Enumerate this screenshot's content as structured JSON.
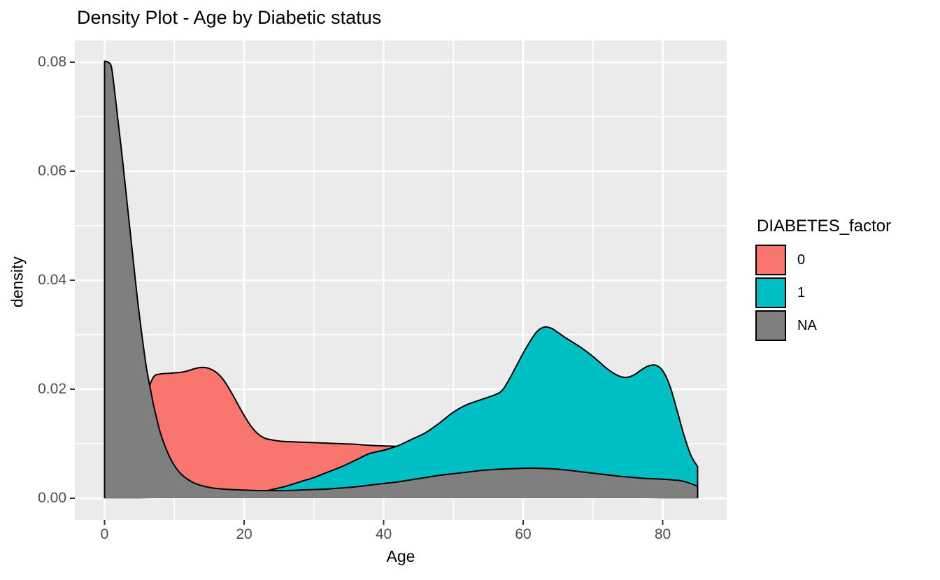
{
  "title": "Density Plot - Age by Diabetic status",
  "axes": {
    "x": {
      "label": "Age",
      "tick_values": [
        0,
        20,
        40,
        60,
        80
      ],
      "tick_labels": [
        "0",
        "20",
        "40",
        "60",
        "80"
      ],
      "minor_tick_values": [
        10,
        30,
        50,
        70
      ]
    },
    "y": {
      "label": "density",
      "tick_values": [
        0,
        0.02,
        0.04,
        0.06,
        0.08
      ],
      "tick_labels": [
        "0.00",
        "0.02",
        "0.04",
        "0.06",
        "0.08"
      ],
      "minor_tick_values": [
        0.01,
        0.03,
        0.05,
        0.07
      ]
    }
  },
  "legend": {
    "title": "DIABETES_factor",
    "items": [
      {
        "label": "0",
        "color": "#F8766D"
      },
      {
        "label": "1",
        "color": "#00BFC4"
      },
      {
        "label": "NA",
        "color": "#7F7F7F"
      }
    ]
  },
  "colors": {
    "panel_background": "#EBEBEB",
    "grid_line": "#FFFFFF",
    "curve_outline": "#000000",
    "tick_mark": "#333333",
    "tick_text": "#4D4D4D",
    "fill_0": "#F8766D",
    "fill_1": "#00BFC4",
    "fill_na": "#7F7F7F"
  },
  "chart_data": {
    "type": "area",
    "title": "Density Plot - Age by Diabetic status",
    "xlabel": "Age",
    "ylabel": "density",
    "xlim": [
      -4.25,
      89.25
    ],
    "ylim": [
      -0.004,
      0.084
    ],
    "grid": true,
    "legend_position": "right",
    "draw_order": [
      "0",
      "1",
      "NA"
    ],
    "series": [
      {
        "name": "0",
        "color": "#F8766D",
        "points": [
          [
            0,
            0.004
          ],
          [
            2,
            0.0065
          ],
          [
            3,
            0.0085
          ],
          [
            4,
            0.0115
          ],
          [
            5,
            0.015
          ],
          [
            6,
            0.019
          ],
          [
            7,
            0.0222
          ],
          [
            8,
            0.0228
          ],
          [
            9,
            0.0229
          ],
          [
            10,
            0.023
          ],
          [
            11,
            0.0231
          ],
          [
            12,
            0.0234
          ],
          [
            13,
            0.0238
          ],
          [
            14,
            0.024
          ],
          [
            15,
            0.0238
          ],
          [
            16,
            0.0231
          ],
          [
            17,
            0.0218
          ],
          [
            18,
            0.0198
          ],
          [
            19,
            0.0175
          ],
          [
            20,
            0.0152
          ],
          [
            21,
            0.0132
          ],
          [
            22,
            0.0118
          ],
          [
            23,
            0.011
          ],
          [
            24,
            0.0107
          ],
          [
            25,
            0.0105
          ],
          [
            26,
            0.0104
          ],
          [
            28,
            0.0103
          ],
          [
            30,
            0.0102
          ],
          [
            32,
            0.0101
          ],
          [
            34,
            0.01
          ],
          [
            36,
            0.0099
          ],
          [
            38,
            0.0097
          ],
          [
            40,
            0.0096
          ],
          [
            42,
            0.0095
          ],
          [
            44,
            0.0093
          ],
          [
            46,
            0.009
          ],
          [
            48,
            0.0085
          ],
          [
            50,
            0.0078
          ],
          [
            52,
            0.0068
          ],
          [
            54,
            0.0057
          ],
          [
            56,
            0.0046
          ],
          [
            58,
            0.0036
          ],
          [
            60,
            0.0027
          ],
          [
            62,
            0.002
          ],
          [
            64,
            0.0014
          ],
          [
            66,
            0.001
          ],
          [
            68,
            0.0007
          ],
          [
            70,
            0.0005
          ],
          [
            75,
            0.0002
          ],
          [
            80,
            0.0001
          ],
          [
            85,
            0.0001
          ]
        ]
      },
      {
        "name": "1",
        "color": "#00BFC4",
        "points": [
          [
            0,
            0.0001
          ],
          [
            5,
            0.0001
          ],
          [
            10,
            0.0002
          ],
          [
            14,
            0.0003
          ],
          [
            16,
            0.0004
          ],
          [
            18,
            0.0005
          ],
          [
            20,
            0.0007
          ],
          [
            22,
            0.001
          ],
          [
            24,
            0.0016
          ],
          [
            26,
            0.0022
          ],
          [
            28,
            0.003
          ],
          [
            30,
            0.0038
          ],
          [
            32,
            0.0048
          ],
          [
            34,
            0.0058
          ],
          [
            36,
            0.007
          ],
          [
            38,
            0.0082
          ],
          [
            40,
            0.0088
          ],
          [
            42,
            0.0096
          ],
          [
            44,
            0.0108
          ],
          [
            46,
            0.012
          ],
          [
            48,
            0.0138
          ],
          [
            50,
            0.0158
          ],
          [
            52,
            0.0172
          ],
          [
            54,
            0.0181
          ],
          [
            56,
            0.019
          ],
          [
            57,
            0.0198
          ],
          [
            58,
            0.0218
          ],
          [
            59,
            0.0242
          ],
          [
            60,
            0.0266
          ],
          [
            61,
            0.0288
          ],
          [
            62,
            0.0306
          ],
          [
            63,
            0.0314
          ],
          [
            64,
            0.0312
          ],
          [
            65,
            0.0304
          ],
          [
            66,
            0.0295
          ],
          [
            67,
            0.0287
          ],
          [
            68,
            0.0279
          ],
          [
            69,
            0.027
          ],
          [
            70,
            0.026
          ],
          [
            71,
            0.0249
          ],
          [
            72,
            0.0238
          ],
          [
            73,
            0.0229
          ],
          [
            74,
            0.0223
          ],
          [
            75,
            0.0222
          ],
          [
            76,
            0.0227
          ],
          [
            77,
            0.0236
          ],
          [
            78,
            0.0243
          ],
          [
            79,
            0.0244
          ],
          [
            80,
            0.0234
          ],
          [
            81,
            0.0207
          ],
          [
            82,
            0.0164
          ],
          [
            83,
            0.0118
          ],
          [
            84,
            0.008
          ],
          [
            85,
            0.0058
          ]
        ]
      },
      {
        "name": "NA",
        "color": "#7F7F7F",
        "points": [
          [
            0,
            0.0802
          ],
          [
            0.5,
            0.08
          ],
          [
            1,
            0.079
          ],
          [
            1.5,
            0.074
          ],
          [
            2,
            0.0685
          ],
          [
            2.5,
            0.063
          ],
          [
            3,
            0.057
          ],
          [
            3.5,
            0.051
          ],
          [
            4,
            0.045
          ],
          [
            4.5,
            0.039
          ],
          [
            5,
            0.0335
          ],
          [
            5.5,
            0.0285
          ],
          [
            6,
            0.024
          ],
          [
            6.5,
            0.0205
          ],
          [
            7,
            0.0172
          ],
          [
            7.5,
            0.0145
          ],
          [
            8,
            0.012
          ],
          [
            9,
            0.0085
          ],
          [
            10,
            0.006
          ],
          [
            11,
            0.0044
          ],
          [
            12,
            0.0034
          ],
          [
            13,
            0.0027
          ],
          [
            14,
            0.0023
          ],
          [
            15,
            0.002
          ],
          [
            16,
            0.0018
          ],
          [
            18,
            0.0016
          ],
          [
            20,
            0.0015
          ],
          [
            22,
            0.0014
          ],
          [
            24,
            0.0014
          ],
          [
            26,
            0.0014
          ],
          [
            28,
            0.0015
          ],
          [
            30,
            0.0016
          ],
          [
            32,
            0.0017
          ],
          [
            34,
            0.0019
          ],
          [
            36,
            0.0021
          ],
          [
            38,
            0.0024
          ],
          [
            40,
            0.0027
          ],
          [
            42,
            0.003
          ],
          [
            44,
            0.0034
          ],
          [
            46,
            0.0038
          ],
          [
            48,
            0.0042
          ],
          [
            50,
            0.0045
          ],
          [
            52,
            0.0048
          ],
          [
            54,
            0.0051
          ],
          [
            56,
            0.0053
          ],
          [
            58,
            0.0054
          ],
          [
            60,
            0.0055
          ],
          [
            62,
            0.0055
          ],
          [
            64,
            0.0054
          ],
          [
            66,
            0.0052
          ],
          [
            68,
            0.0049
          ],
          [
            70,
            0.0046
          ],
          [
            72,
            0.0043
          ],
          [
            74,
            0.004
          ],
          [
            76,
            0.0038
          ],
          [
            78,
            0.0036
          ],
          [
            80,
            0.0035
          ],
          [
            82,
            0.0033
          ],
          [
            83,
            0.0031
          ],
          [
            84,
            0.0027
          ],
          [
            85,
            0.0022
          ]
        ]
      }
    ]
  }
}
